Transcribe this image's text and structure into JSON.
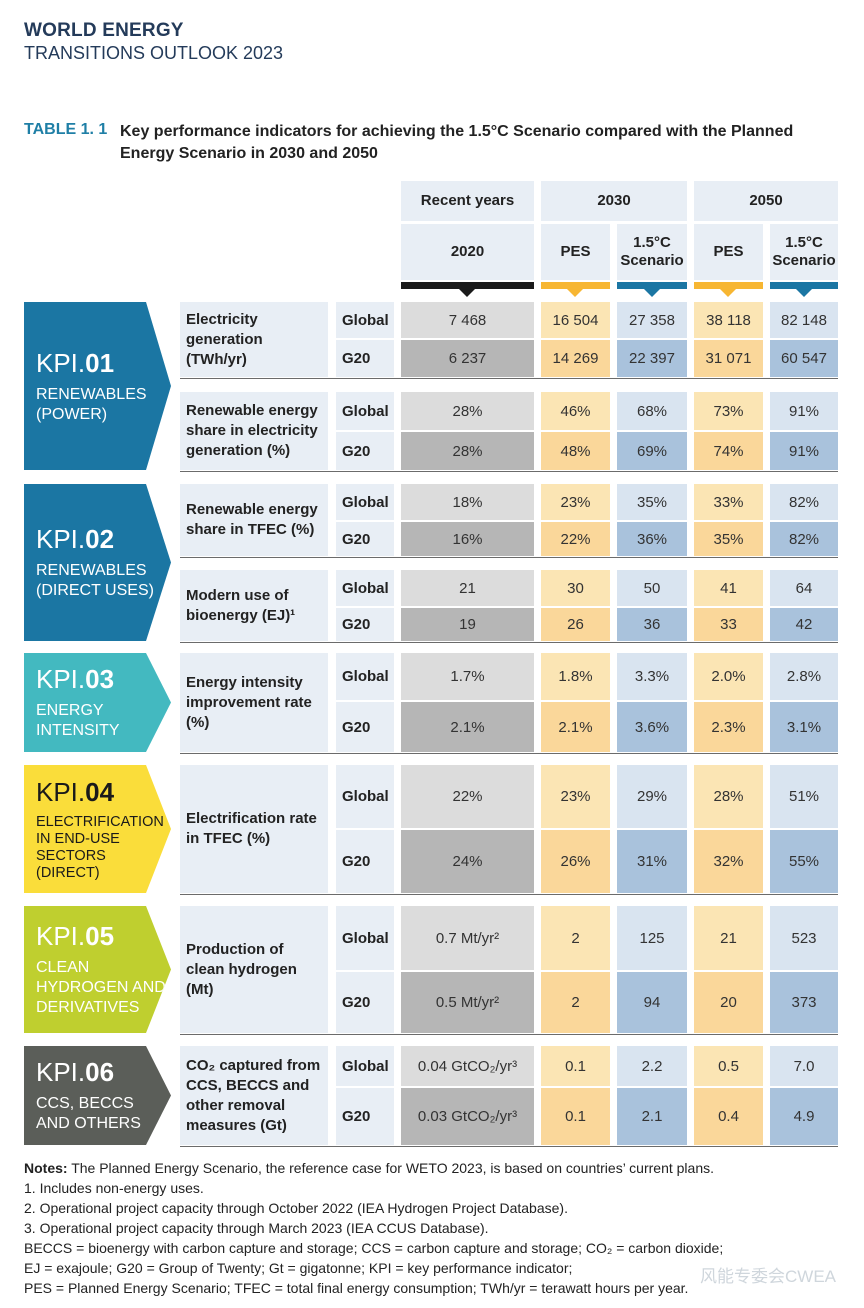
{
  "header": {
    "line1": "WORLD ENERGY",
    "line2": "TRANSITIONS OUTLOOK 2023"
  },
  "table": {
    "label": "TABLE 1. 1",
    "title": "Key performance indicators for achieving the 1.5°C Scenario compared with the Planned Energy Scenario in 2030 and 2050",
    "col_groups": {
      "recent": "Recent years",
      "y2030": "2030",
      "y2050": "2050"
    },
    "sub_cols": {
      "recent": "2020",
      "pes_2030": "PES",
      "s15_2030": "1.5°C Scenario",
      "pes_2050": "PES",
      "s15_2050": "1.5°C Scenario"
    },
    "colors": {
      "kpi01": "#1b76a3",
      "kpi02": "#1b76a3",
      "kpi03": "#43b9c0",
      "kpi04": "#fadd3a",
      "kpi05": "#bfcf2f",
      "kpi06": "#5b5e59",
      "pes": "#fbe5b4",
      "pes_g20": "#fad79a",
      "s15": "#d9e4f0",
      "s15_g20": "#a9c2dc",
      "recent": "#dcdcdc",
      "recent_g20": "#b6b6b6",
      "bar_recent": "#1a1a1a",
      "bar_pes": "#f7b632",
      "bar_s15": "#1b76a3"
    }
  },
  "kpis": [
    {
      "num": "01",
      "prefix": "KPI.",
      "name": "RENEWABLES (POWER)",
      "indicators": [
        {
          "desc": "Electricity generation (TWh/yr)",
          "rows": [
            {
              "region": "Global",
              "values": [
                "7 468",
                "16 504",
                "27 358",
                "38 118",
                "82 148"
              ]
            },
            {
              "region": "G20",
              "values": [
                "6 237",
                "14 269",
                "22 397",
                "31 071",
                "60 547"
              ]
            }
          ]
        },
        {
          "desc": "Renewable energy share in electricity generation (%)",
          "rows": [
            {
              "region": "Global",
              "values": [
                "28%",
                "46%",
                "68%",
                "73%",
                "91%"
              ]
            },
            {
              "region": "G20",
              "values": [
                "28%",
                "48%",
                "69%",
                "74%",
                "91%"
              ]
            }
          ]
        }
      ]
    },
    {
      "num": "02",
      "prefix": "KPI.",
      "name": "RENEWABLES (DIRECT USES)",
      "indicators": [
        {
          "desc": "Renewable energy share in TFEC (%)",
          "rows": [
            {
              "region": "Global",
              "values": [
                "18%",
                "23%",
                "35%",
                "33%",
                "82%"
              ]
            },
            {
              "region": "G20",
              "values": [
                "16%",
                "22%",
                "36%",
                "35%",
                "82%"
              ]
            }
          ]
        },
        {
          "desc": "Modern use of bioenergy (EJ)¹",
          "rows": [
            {
              "region": "Global",
              "values": [
                "21",
                "30",
                "50",
                "41",
                "64"
              ]
            },
            {
              "region": "G20",
              "values": [
                "19",
                "26",
                "36",
                "33",
                "42"
              ]
            }
          ]
        }
      ]
    },
    {
      "num": "03",
      "prefix": "KPI.",
      "name": "ENERGY INTENSITY",
      "indicators": [
        {
          "desc": "Energy intensity improvement rate (%)",
          "rows": [
            {
              "region": "Global",
              "values": [
                "1.7%",
                "1.8%",
                "3.3%",
                "2.0%",
                "2.8%"
              ]
            },
            {
              "region": "G20",
              "values": [
                "2.1%",
                "2.1%",
                "3.6%",
                "2.3%",
                "3.1%"
              ]
            }
          ]
        }
      ]
    },
    {
      "num": "04",
      "prefix": "KPI.",
      "name": "ELECTRIFICATION IN END-USE SECTORS (DIRECT)",
      "indicators": [
        {
          "desc": "Electrification rate in TFEC (%)",
          "rows": [
            {
              "region": "Global",
              "values": [
                "22%",
                "23%",
                "29%",
                "28%",
                "51%"
              ]
            },
            {
              "region": "G20",
              "values": [
                "24%",
                "26%",
                "31%",
                "32%",
                "55%"
              ]
            }
          ]
        }
      ]
    },
    {
      "num": "05",
      "prefix": "KPI.",
      "name": "CLEAN HYDROGEN AND DERIVATIVES",
      "indicators": [
        {
          "desc": "Production of clean hydrogen (Mt)",
          "rows": [
            {
              "region": "Global",
              "values": [
                "0.7 Mt/yr²",
                "2",
                "125",
                "21",
                "523"
              ]
            },
            {
              "region": "G20",
              "values": [
                "0.5 Mt/yr²",
                "2",
                "94",
                "20",
                "373"
              ]
            }
          ]
        }
      ]
    },
    {
      "num": "06",
      "prefix": "KPI.",
      "name": "CCS, BECCS AND OTHERS",
      "indicators": [
        {
          "desc": "CO₂ captured from CCS, BECCS and other removal measures (Gt)",
          "rows": [
            {
              "region": "Global",
              "values": [
                "0.04 GtCO₂/yr³",
                "0.1",
                "2.2",
                "0.5",
                "7.0"
              ]
            },
            {
              "region": "G20",
              "values": [
                "0.03 GtCO₂/yr³",
                "0.1",
                "2.1",
                "0.4",
                "4.9"
              ]
            }
          ]
        }
      ]
    }
  ],
  "notes": {
    "label": "Notes:",
    "intro": " The Planned Energy Scenario, the reference case for WETO 2023, is based on countries’ current plans.",
    "n1": "1. Includes non-energy uses.",
    "n2": "2. Operational project capacity through October 2022 (IEA Hydrogen Project Database).",
    "n3": "3. Operational project capacity through March 2023 (IEA CCUS Database).",
    "abbr1": "BECCS = bioenergy with carbon capture and storage; CCS = carbon capture and storage; CO₂ = carbon dioxide;",
    "abbr2": "EJ = exajoule; G20 = Group of Twenty; Gt = gigatonne; KPI = key performance indicator;",
    "abbr3": "PES = Planned Energy Scenario; TFEC = total final energy consumption; TWh/yr = terawatt hours per year."
  },
  "watermark": "风能专委会CWEA"
}
